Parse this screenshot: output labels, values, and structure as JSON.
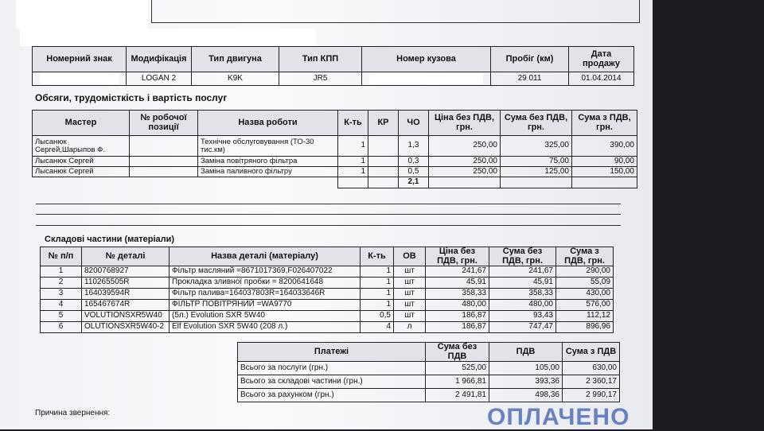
{
  "vehicle": {
    "headers": [
      "Номерний знак",
      "Модифікація",
      "Тип двигуна",
      "Тип КПП",
      "Номер кузова",
      "Пробіг (км)",
      "Дата продажу"
    ],
    "row": {
      "modification": "LOGAN 2",
      "engine": "K9K",
      "gearbox": "JR5",
      "mileage": "29 011",
      "sale_date": "01.04.2014"
    }
  },
  "services": {
    "title": "Обсяги, трудомісткість і вартість послуг",
    "headers": [
      "Мастер",
      "№ робочої позиції",
      "Назва роботи",
      "К-ть",
      "КР",
      "ЧО",
      "Ціна без ПДВ, грн.",
      "Сума без ПДВ, грн.",
      "Сума з ПДВ, грн."
    ],
    "rows": [
      {
        "master": "Лысанюк Сергей,Шарыпов Ф.",
        "work": "Технічне обслуговування (ТО-30 тис.км)",
        "qty": "1",
        "hours": "1,3",
        "price": "250,00",
        "sum": "325,00",
        "sum_vat": "390,00"
      },
      {
        "master": "Лысанюк Сергей",
        "work": "Заміна повітряного фільтра",
        "qty": "1",
        "hours": "0,3",
        "price": "250,00",
        "sum": "75,00",
        "sum_vat": "90,00"
      },
      {
        "master": "Лысанюк Сергей",
        "work": "Заміна паливного фільтру",
        "qty": "1",
        "hours": "0,5",
        "price": "250,00",
        "sum": "125,00",
        "sum_vat": "150,00"
      }
    ],
    "total_hours": "2,1"
  },
  "parts": {
    "title": "Складові частини (матеріали)",
    "headers": [
      "№ п/п",
      "№ деталі",
      "Назва деталі (матеріалу)",
      "К-ть",
      "ОВ",
      "Ціна без ПДВ, грн.",
      "Сума без ПДВ, грн.",
      "Сума з ПДВ, грн."
    ],
    "rows": [
      [
        "1",
        "8200768927",
        "Фільтр масляний =8671017369,F026407022",
        "1",
        "шт",
        "241,67",
        "241,67",
        "290,00"
      ],
      [
        "2",
        "110265505R",
        "Прокладка зливної пробки = 8200641648",
        "1",
        "шт",
        "45,91",
        "45,91",
        "55,09"
      ],
      [
        "3",
        "164039594R",
        "Фільтр палива=164037803R=164033646R",
        "1",
        "шт",
        "358,33",
        "358,33",
        "430,00"
      ],
      [
        "4",
        "165467674R",
        "ФІЛЬТР ПОВІТРЯНИЙ =WA9770",
        "1",
        "шт",
        "480,00",
        "480,00",
        "576,00"
      ],
      [
        "5",
        "VOLUTIONSXR5W40",
        "(5л.) Evolution SXR 5W40",
        "0,5",
        "шт",
        "186,87",
        "93,43",
        "112,12"
      ],
      [
        "6",
        "OLUTIONSXR5W40-2",
        "Elf Evolution SXR 5W40 (208 л.)",
        "4",
        "л",
        "186,87",
        "747,47",
        "896,96"
      ]
    ]
  },
  "payments": {
    "headers": [
      "Платежі",
      "Сума без ПДВ",
      "ПДВ",
      "Сума з ПДВ"
    ],
    "rows": [
      [
        "Всього за послуги (грн.)",
        "525,00",
        "105,00",
        "630,00"
      ],
      [
        "Всього за складові частини (грн.)",
        "1 966,81",
        "393,36",
        "2 360,17"
      ],
      [
        "Всього за рахунком (грн.)",
        "2 491,81",
        "498,36",
        "2 990,17"
      ]
    ]
  },
  "footer": {
    "reason_label": "Причина звернення:",
    "stamp": "ОПЛАЧЕНО"
  }
}
